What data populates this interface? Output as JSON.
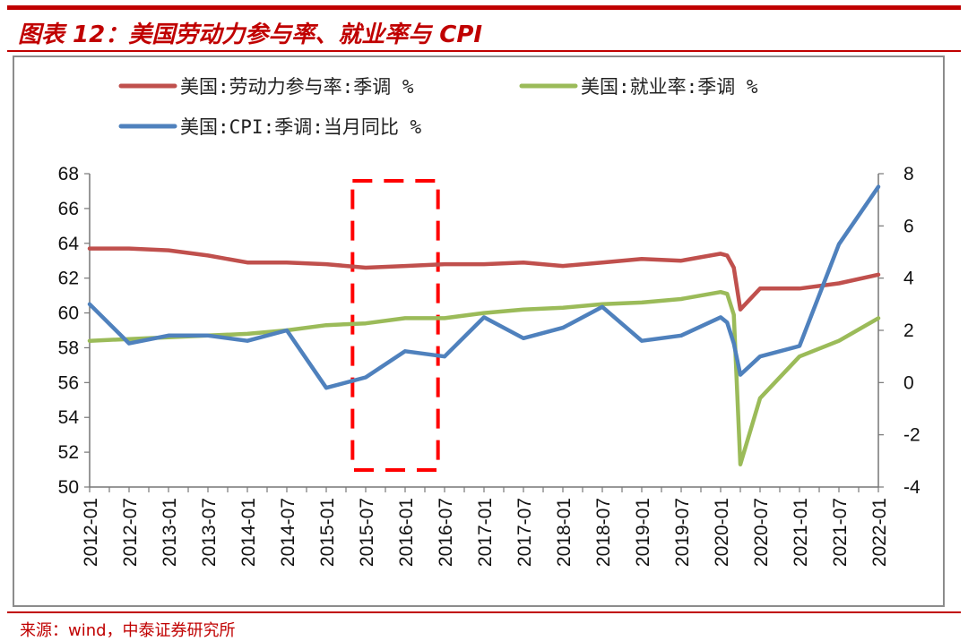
{
  "header": {
    "title": "图表 12：美国劳动力参与率、就业率与 CPI"
  },
  "footer": {
    "source": "来源：wind，中泰证券研究所"
  },
  "chart_data": {
    "type": "line",
    "xlabel": "",
    "ylabel": "",
    "y2label": "",
    "x_tick_labels": [
      "2012-01",
      "2012-07",
      "2013-01",
      "2013-07",
      "2014-01",
      "2014-07",
      "2015-01",
      "2015-07",
      "2016-01",
      "2016-07",
      "2017-01",
      "2017-07",
      "2018-01",
      "2018-07",
      "2019-01",
      "2019-07",
      "2020-01",
      "2020-07",
      "2021-01",
      "2021-07",
      "2022-01"
    ],
    "x_range": [
      "2012-01",
      "2022-01"
    ],
    "ylim_left": [
      50,
      68
    ],
    "yticks_left": [
      50,
      52,
      54,
      56,
      58,
      60,
      62,
      64,
      66,
      68
    ],
    "ylim_right": [
      -4,
      8
    ],
    "yticks_right": [
      -4,
      -2,
      0,
      2,
      4,
      6,
      8
    ],
    "legend_position": "top",
    "grid": false,
    "annotation": {
      "type": "dashed-box",
      "from": "2015-05",
      "to": "2016-06",
      "color": "#ff0000"
    },
    "series": [
      {
        "name": "美国:劳动力参与率:季调 %",
        "axis": "left",
        "color": "#c0504d",
        "points": [
          [
            "2012-01",
            63.7
          ],
          [
            "2012-07",
            63.7
          ],
          [
            "2013-01",
            63.6
          ],
          [
            "2013-07",
            63.3
          ],
          [
            "2014-01",
            62.9
          ],
          [
            "2014-07",
            62.9
          ],
          [
            "2015-01",
            62.8
          ],
          [
            "2015-07",
            62.6
          ],
          [
            "2016-01",
            62.7
          ],
          [
            "2016-07",
            62.8
          ],
          [
            "2017-01",
            62.8
          ],
          [
            "2017-07",
            62.9
          ],
          [
            "2018-01",
            62.7
          ],
          [
            "2018-07",
            62.9
          ],
          [
            "2019-01",
            63.1
          ],
          [
            "2019-07",
            63.0
          ],
          [
            "2020-01",
            63.4
          ],
          [
            "2020-02",
            63.3
          ],
          [
            "2020-03",
            62.6
          ],
          [
            "2020-04",
            60.2
          ],
          [
            "2020-07",
            61.4
          ],
          [
            "2021-01",
            61.4
          ],
          [
            "2021-07",
            61.7
          ],
          [
            "2022-01",
            62.2
          ]
        ]
      },
      {
        "name": "美国:就业率:季调 %",
        "axis": "left",
        "color": "#9bbb59",
        "points": [
          [
            "2012-01",
            58.4
          ],
          [
            "2012-07",
            58.5
          ],
          [
            "2013-01",
            58.6
          ],
          [
            "2013-07",
            58.7
          ],
          [
            "2014-01",
            58.8
          ],
          [
            "2014-07",
            59.0
          ],
          [
            "2015-01",
            59.3
          ],
          [
            "2015-07",
            59.4
          ],
          [
            "2016-01",
            59.7
          ],
          [
            "2016-07",
            59.7
          ],
          [
            "2017-01",
            60.0
          ],
          [
            "2017-07",
            60.2
          ],
          [
            "2018-01",
            60.3
          ],
          [
            "2018-07",
            60.5
          ],
          [
            "2019-01",
            60.6
          ],
          [
            "2019-07",
            60.8
          ],
          [
            "2020-01",
            61.2
          ],
          [
            "2020-02",
            61.1
          ],
          [
            "2020-03",
            59.9
          ],
          [
            "2020-04",
            51.3
          ],
          [
            "2020-07",
            55.1
          ],
          [
            "2021-01",
            57.5
          ],
          [
            "2021-07",
            58.4
          ],
          [
            "2022-01",
            59.7
          ]
        ]
      },
      {
        "name": "美国:CPI:季调:当月同比 %",
        "axis": "right",
        "color": "#4f81bd",
        "points": [
          [
            "2012-01",
            3.0
          ],
          [
            "2012-07",
            1.5
          ],
          [
            "2013-01",
            1.8
          ],
          [
            "2013-07",
            1.8
          ],
          [
            "2014-01",
            1.6
          ],
          [
            "2014-07",
            2.0
          ],
          [
            "2015-01",
            -0.2
          ],
          [
            "2015-07",
            0.2
          ],
          [
            "2016-01",
            1.2
          ],
          [
            "2016-07",
            1.0
          ],
          [
            "2017-01",
            2.5
          ],
          [
            "2017-07",
            1.7
          ],
          [
            "2018-01",
            2.1
          ],
          [
            "2018-07",
            2.9
          ],
          [
            "2019-01",
            1.6
          ],
          [
            "2019-07",
            1.8
          ],
          [
            "2020-01",
            2.5
          ],
          [
            "2020-02",
            2.3
          ],
          [
            "2020-03",
            1.5
          ],
          [
            "2020-04",
            0.3
          ],
          [
            "2020-07",
            1.0
          ],
          [
            "2021-01",
            1.4
          ],
          [
            "2021-07",
            5.3
          ],
          [
            "2022-01",
            7.5
          ]
        ]
      }
    ]
  }
}
